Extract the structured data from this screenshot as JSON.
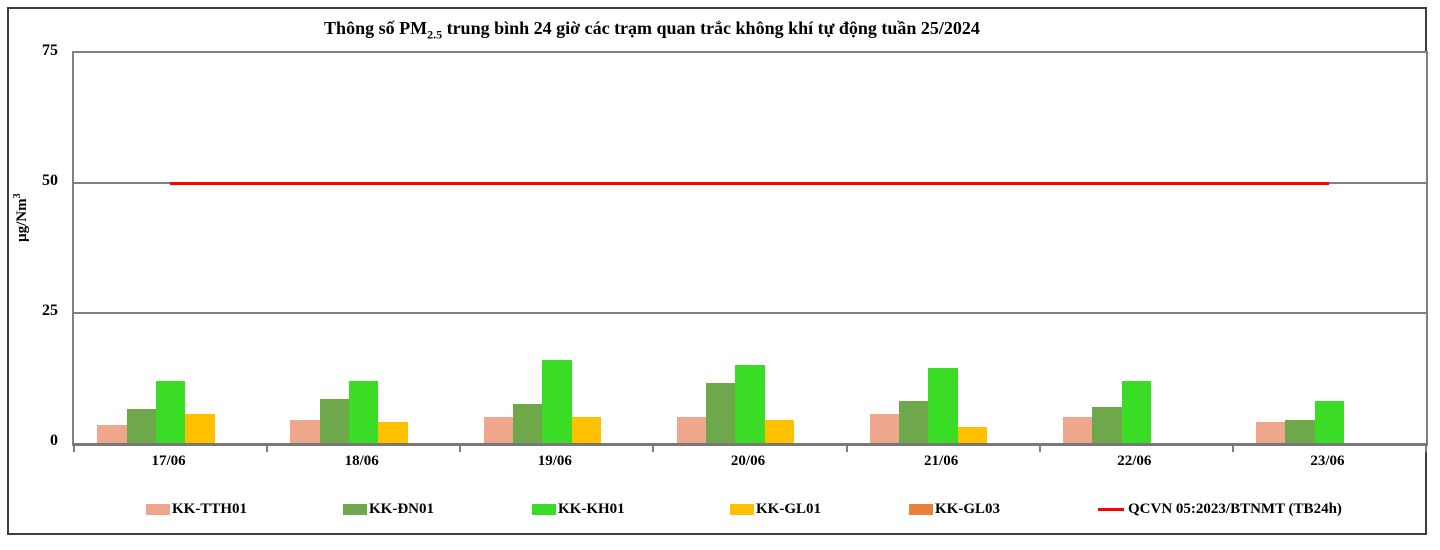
{
  "title": {
    "prefix": "Thông số PM",
    "subscript": "2.5",
    "suffix": " trung bình 24 giờ các trạm quan trắc không khí tự động tuần 25/2024"
  },
  "y_axis": {
    "label_main": "µg/Nm",
    "label_sup": "3"
  },
  "chart_data": {
    "type": "bar",
    "title": "Thông số PM2.5 trung bình 24 giờ các trạm quan trắc không khí tự động tuần 25/2024",
    "categories": [
      "17/06",
      "18/06",
      "19/06",
      "20/06",
      "21/06",
      "22/06",
      "23/06"
    ],
    "series": [
      {
        "name": "KK-TTH01",
        "color": "#EEA78C",
        "values": [
          3.5,
          4.5,
          5,
          5,
          5.5,
          5,
          4
        ]
      },
      {
        "name": "KK-ĐN01",
        "color": "#6FA84B",
        "values": [
          6.5,
          8.5,
          7.5,
          11.5,
          8,
          7,
          4.5
        ]
      },
      {
        "name": "KK-KH01",
        "color": "#3ADC26",
        "values": [
          12,
          12,
          16,
          15,
          14.5,
          12,
          8
        ]
      },
      {
        "name": "KK-GL01",
        "color": "#FFC000",
        "values": [
          5.5,
          4,
          5,
          4.5,
          3,
          null,
          null
        ]
      },
      {
        "name": "KK-GL03",
        "color": "#E8813C",
        "values": [
          null,
          null,
          null,
          null,
          null,
          null,
          null
        ]
      }
    ],
    "reference_line": {
      "name": "QCVN 05:2023/BTNMT (TB24h)",
      "value": 50,
      "color": "#FF0000"
    },
    "ylabel": "µg/Nm³",
    "ylim": [
      0,
      75
    ],
    "yticks": [
      0,
      25,
      50,
      75
    ],
    "grid": "horizontal",
    "legend_position": "bottom",
    "axis_color": "#808080"
  },
  "legend_note": "legend items are generated from chart_data.series and chart_data.reference_line"
}
